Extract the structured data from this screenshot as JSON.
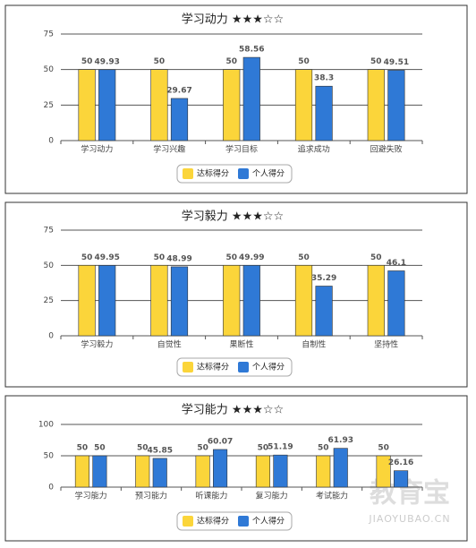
{
  "chart_data": [
    {
      "type": "bar",
      "title": "学习动力 ★★★☆☆",
      "categories": [
        "学习动力",
        "学习兴趣",
        "学习目标",
        "追求成功",
        "回避失败"
      ],
      "series": [
        {
          "name": "达标得分",
          "color": "#fbd53a",
          "values": [
            50,
            50,
            50,
            50,
            50
          ]
        },
        {
          "name": "个人得分",
          "color": "#2f79d6",
          "values": [
            49.93,
            29.67,
            58.56,
            38.3,
            49.51
          ]
        }
      ],
      "ylim": [
        0,
        75
      ],
      "yticks": [
        0,
        25,
        50,
        75
      ],
      "grid": true,
      "legend": "bottom"
    },
    {
      "type": "bar",
      "title": "学习毅力 ★★★☆☆",
      "categories": [
        "学习毅力",
        "自觉性",
        "果断性",
        "自制性",
        "坚持性"
      ],
      "series": [
        {
          "name": "达标得分",
          "color": "#fbd53a",
          "values": [
            50,
            50,
            50,
            50,
            50
          ]
        },
        {
          "name": "个人得分",
          "color": "#2f79d6",
          "values": [
            49.95,
            48.99,
            49.99,
            35.29,
            46.1
          ]
        }
      ],
      "ylim": [
        0,
        75
      ],
      "yticks": [
        0,
        25,
        50,
        75
      ],
      "grid": true,
      "legend": "bottom"
    },
    {
      "type": "bar",
      "title": "学习能力 ★★★☆☆",
      "categories": [
        "学习能力",
        "预习能力",
        "听课能力",
        "复习能力",
        "考试能力",
        null
      ],
      "series": [
        {
          "name": "达标得分",
          "color": "#fbd53a",
          "values": [
            50,
            50,
            50,
            50,
            50,
            50
          ]
        },
        {
          "name": "个人得分",
          "color": "#2f79d6",
          "values": [
            50,
            45.85,
            60.07,
            51.19,
            61.93,
            26.16
          ]
        }
      ],
      "ylim": [
        0,
        100
      ],
      "yticks": [
        0,
        50,
        100
      ],
      "grid": true,
      "legend": "bottom"
    }
  ],
  "watermark": {
    "logo": "教育宝",
    "url": "JIAOYUBAO.CN"
  }
}
